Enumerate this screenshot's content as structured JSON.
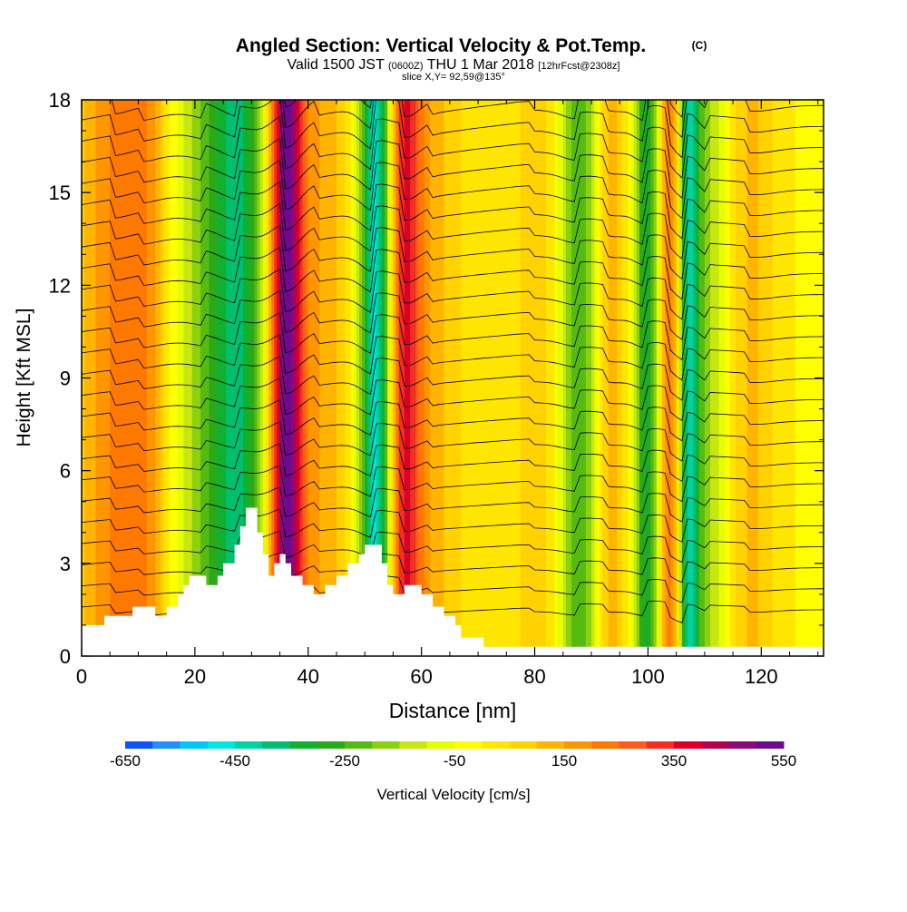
{
  "chart_data": {
    "type": "heatmap",
    "title": "Angled Section: Vertical Velocity & Pot.Temp.",
    "title_units": "(C)",
    "subtitle": {
      "part1": "Valid 1500 JST",
      "part2": "(0600Z)",
      "part3": "THU 1 Mar 2018",
      "part4": "[12hrFcst@2308z]"
    },
    "slice_label": "slice X,Y= 92,59@135°",
    "xlabel": "Distance [nm]",
    "ylabel": "Height [Kft MSL]",
    "xlim": [
      0,
      131
    ],
    "ylim": [
      0,
      18
    ],
    "x_ticks": [
      "0",
      "20",
      "40",
      "60",
      "80",
      "100",
      "120"
    ],
    "y_ticks": [
      "0",
      "3",
      "6",
      "9",
      "12",
      "15",
      "18"
    ],
    "colorbar": {
      "label": "Vertical Velocity [cm/s]",
      "range": [
        -650,
        550
      ],
      "step": 50,
      "tick_labels": [
        "-650",
        "-450",
        "-250",
        "-50",
        "150",
        "350",
        "550"
      ],
      "colors": [
        "#1010ee",
        "#1050ff",
        "#1e90ff",
        "#00c8ff",
        "#00e5e0",
        "#00d2a0",
        "#00c070",
        "#10b030",
        "#2aaa1a",
        "#55bb10",
        "#8cd010",
        "#c8e610",
        "#e6ff00",
        "#ffff00",
        "#ffe600",
        "#ffd200",
        "#ffb400",
        "#ff9600",
        "#ff7800",
        "#ff5a1e",
        "#f03020",
        "#dc0028",
        "#b40050",
        "#8c0a78",
        "#6e0a8c",
        "#501496"
      ]
    },
    "velocity_bands": [
      {
        "x": 6,
        "w": 7,
        "value": 200
      },
      {
        "x": 11,
        "w": 4,
        "value": 120
      },
      {
        "x": 22,
        "w": 6,
        "value": -150
      },
      {
        "x": 28,
        "w": 5,
        "value": -300
      },
      {
        "x": 36,
        "w": 3,
        "value": 520
      },
      {
        "x": 42,
        "w": 5,
        "value": 150
      },
      {
        "x": 52,
        "w": 2.8,
        "value": -480
      },
      {
        "x": 57,
        "w": 3,
        "value": 330
      },
      {
        "x": 62,
        "w": 6,
        "value": 120
      },
      {
        "x": 80,
        "w": 5,
        "value": 80
      },
      {
        "x": 88,
        "w": 3.5,
        "value": -250
      },
      {
        "x": 93,
        "w": 3,
        "value": 150
      },
      {
        "x": 100,
        "w": 2.5,
        "value": -320
      },
      {
        "x": 104,
        "w": 2.5,
        "value": 300
      },
      {
        "x": 107,
        "w": 2,
        "value": -420
      },
      {
        "x": 111,
        "w": 4,
        "value": -150
      },
      {
        "x": 118,
        "w": 5,
        "value": 120
      }
    ],
    "terrain_profile": [
      [
        0,
        1.0
      ],
      [
        4,
        1.0
      ],
      [
        4,
        1.3
      ],
      [
        9,
        1.3
      ],
      [
        9,
        1.6
      ],
      [
        13,
        1.6
      ],
      [
        13,
        1.3
      ],
      [
        15,
        1.3
      ],
      [
        15,
        1.6
      ],
      [
        17,
        1.6
      ],
      [
        17,
        2.0
      ],
      [
        18,
        2.0
      ],
      [
        18,
        2.3
      ],
      [
        19,
        2.3
      ],
      [
        19,
        2.6
      ],
      [
        22,
        2.6
      ],
      [
        22,
        2.3
      ],
      [
        24,
        2.3
      ],
      [
        24,
        2.6
      ],
      [
        25,
        2.6
      ],
      [
        25,
        3.0
      ],
      [
        27,
        3.0
      ],
      [
        27,
        3.6
      ],
      [
        28,
        3.6
      ],
      [
        28,
        4.2
      ],
      [
        29,
        4.2
      ],
      [
        29,
        4.8
      ],
      [
        31,
        4.8
      ],
      [
        31,
        4.0
      ],
      [
        32,
        4.0
      ],
      [
        32,
        3.3
      ],
      [
        33,
        3.3
      ],
      [
        33,
        2.6
      ],
      [
        34,
        2.6
      ],
      [
        34,
        3.0
      ],
      [
        35,
        3.0
      ],
      [
        35,
        3.3
      ],
      [
        36,
        3.3
      ],
      [
        36,
        3.0
      ],
      [
        37,
        3.0
      ],
      [
        37,
        2.6
      ],
      [
        39,
        2.6
      ],
      [
        39,
        2.3
      ],
      [
        41,
        2.3
      ],
      [
        41,
        2.0
      ],
      [
        43,
        2.0
      ],
      [
        43,
        2.3
      ],
      [
        45,
        2.3
      ],
      [
        45,
        2.6
      ],
      [
        47,
        2.6
      ],
      [
        47,
        3.0
      ],
      [
        49,
        3.0
      ],
      [
        49,
        3.3
      ],
      [
        50,
        3.3
      ],
      [
        50,
        3.6
      ],
      [
        53,
        3.6
      ],
      [
        53,
        3.0
      ],
      [
        54,
        3.0
      ],
      [
        54,
        2.3
      ],
      [
        55,
        2.3
      ],
      [
        55,
        2.0
      ],
      [
        57,
        2.0
      ],
      [
        57,
        2.3
      ],
      [
        60,
        2.3
      ],
      [
        60,
        2.0
      ],
      [
        62,
        2.0
      ],
      [
        62,
        1.6
      ],
      [
        64,
        1.6
      ],
      [
        64,
        1.3
      ],
      [
        66,
        1.3
      ],
      [
        66,
        1.0
      ],
      [
        67,
        1.0
      ],
      [
        67,
        0.6
      ],
      [
        71,
        0.6
      ],
      [
        71,
        0.3
      ],
      [
        131,
        0.3
      ]
    ],
    "theta_contours": {
      "count": 26,
      "bottom": 1.5,
      "top": 18.5
    }
  }
}
